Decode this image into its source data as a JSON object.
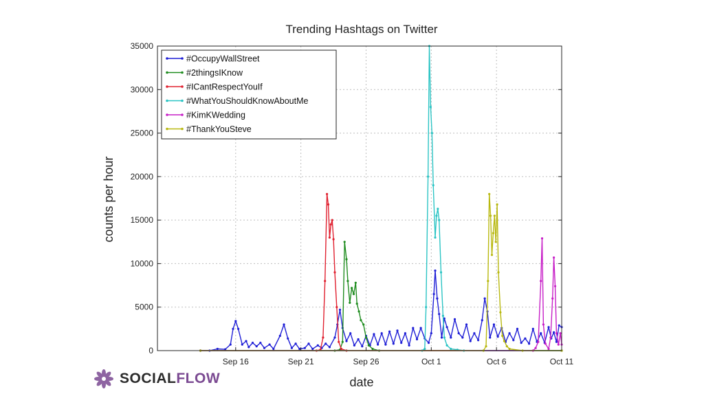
{
  "chart_data": {
    "type": "line",
    "title": "Trending Hashtags on Twitter",
    "xlabel": "date",
    "ylabel": "counts per hour",
    "xlim_days": [
      0,
      31
    ],
    "ylim": [
      0,
      35000
    ],
    "yticks": [
      0,
      5000,
      10000,
      15000,
      20000,
      25000,
      30000,
      35000
    ],
    "xticks": [
      {
        "day": 6,
        "label": "Sep 16"
      },
      {
        "day": 11,
        "label": "Sep 21"
      },
      {
        "day": 16,
        "label": "Sep 26"
      },
      {
        "day": 21,
        "label": "Oct 1"
      },
      {
        "day": 26,
        "label": "Oct 6"
      },
      {
        "day": 31,
        "label": "Oct 11"
      }
    ],
    "x_origin": "Sep 10",
    "grid": true,
    "legend": "top-left",
    "series": [
      {
        "name": "#OccupyWallStreet",
        "color": "#1f1fd6",
        "points": [
          [
            3.3,
            0
          ],
          [
            4.0,
            0
          ],
          [
            4.6,
            200
          ],
          [
            5.2,
            150
          ],
          [
            5.6,
            700
          ],
          [
            5.8,
            2500
          ],
          [
            6.0,
            3400
          ],
          [
            6.2,
            2500
          ],
          [
            6.5,
            700
          ],
          [
            6.8,
            1100
          ],
          [
            7.0,
            400
          ],
          [
            7.3,
            900
          ],
          [
            7.6,
            500
          ],
          [
            7.9,
            900
          ],
          [
            8.2,
            300
          ],
          [
            8.6,
            700
          ],
          [
            8.9,
            200
          ],
          [
            9.4,
            1700
          ],
          [
            9.7,
            3000
          ],
          [
            10.0,
            1400
          ],
          [
            10.3,
            300
          ],
          [
            10.6,
            800
          ],
          [
            10.9,
            200
          ],
          [
            11.3,
            300
          ],
          [
            11.6,
            800
          ],
          [
            11.9,
            200
          ],
          [
            12.3,
            600
          ],
          [
            12.6,
            300
          ],
          [
            12.9,
            800
          ],
          [
            13.2,
            400
          ],
          [
            13.6,
            1500
          ],
          [
            13.8,
            3000
          ],
          [
            14.0,
            4700
          ],
          [
            14.2,
            2600
          ],
          [
            14.5,
            1100
          ],
          [
            14.8,
            2000
          ],
          [
            15.1,
            600
          ],
          [
            15.4,
            1300
          ],
          [
            15.7,
            500
          ],
          [
            16.0,
            1700
          ],
          [
            16.3,
            600
          ],
          [
            16.6,
            1900
          ],
          [
            16.9,
            700
          ],
          [
            17.2,
            2000
          ],
          [
            17.5,
            700
          ],
          [
            17.8,
            2200
          ],
          [
            18.1,
            800
          ],
          [
            18.4,
            2300
          ],
          [
            18.7,
            900
          ],
          [
            19.0,
            2000
          ],
          [
            19.3,
            600
          ],
          [
            19.6,
            2600
          ],
          [
            19.9,
            1300
          ],
          [
            20.2,
            2600
          ],
          [
            20.5,
            1400
          ],
          [
            20.8,
            900
          ],
          [
            21.0,
            2000
          ],
          [
            21.2,
            6500
          ],
          [
            21.3,
            9200
          ],
          [
            21.45,
            6000
          ],
          [
            21.6,
            4200
          ],
          [
            21.8,
            1500
          ],
          [
            22.0,
            3700
          ],
          [
            22.2,
            2700
          ],
          [
            22.5,
            1500
          ],
          [
            22.8,
            3600
          ],
          [
            23.1,
            2000
          ],
          [
            23.4,
            1500
          ],
          [
            23.7,
            3000
          ],
          [
            24.0,
            1100
          ],
          [
            24.3,
            2000
          ],
          [
            24.6,
            1200
          ],
          [
            24.9,
            3500
          ],
          [
            25.1,
            6000
          ],
          [
            25.3,
            4500
          ],
          [
            25.5,
            1500
          ],
          [
            25.8,
            3000
          ],
          [
            26.1,
            1600
          ],
          [
            26.4,
            2600
          ],
          [
            26.7,
            1000
          ],
          [
            27.0,
            2000
          ],
          [
            27.3,
            1200
          ],
          [
            27.6,
            2500
          ],
          [
            27.9,
            900
          ],
          [
            28.2,
            1400
          ],
          [
            28.5,
            800
          ],
          [
            28.8,
            2500
          ],
          [
            29.1,
            1000
          ],
          [
            29.4,
            2000
          ],
          [
            29.7,
            900
          ],
          [
            30.0,
            2700
          ],
          [
            30.2,
            1400
          ],
          [
            30.4,
            2100
          ],
          [
            30.6,
            1000
          ],
          [
            30.8,
            2900
          ],
          [
            31.0,
            2700
          ]
        ]
      },
      {
        "name": "#2thingsIKnow",
        "color": "#1f8c1f",
        "points": [
          [
            3.3,
            0
          ],
          [
            13.6,
            0
          ],
          [
            14.0,
            100
          ],
          [
            14.2,
            1000
          ],
          [
            14.35,
            12500
          ],
          [
            14.5,
            10500
          ],
          [
            14.6,
            8000
          ],
          [
            14.75,
            5500
          ],
          [
            14.9,
            7200
          ],
          [
            15.05,
            6500
          ],
          [
            15.2,
            7800
          ],
          [
            15.3,
            5400
          ],
          [
            15.45,
            4500
          ],
          [
            15.6,
            3500
          ],
          [
            15.8,
            3000
          ],
          [
            16.0,
            1500
          ],
          [
            16.2,
            600
          ],
          [
            16.5,
            200
          ],
          [
            17.0,
            0
          ],
          [
            31.0,
            0
          ]
        ]
      },
      {
        "name": "#ICantRespectYouIf",
        "color": "#e0202f",
        "points": [
          [
            3.3,
            0
          ],
          [
            12.2,
            0
          ],
          [
            12.5,
            100
          ],
          [
            12.7,
            1500
          ],
          [
            12.85,
            8000
          ],
          [
            13.0,
            18000
          ],
          [
            13.1,
            16800
          ],
          [
            13.2,
            13000
          ],
          [
            13.3,
            14500
          ],
          [
            13.4,
            15000
          ],
          [
            13.5,
            12800
          ],
          [
            13.6,
            9000
          ],
          [
            13.75,
            5000
          ],
          [
            13.9,
            1000
          ],
          [
            14.1,
            200
          ],
          [
            14.5,
            0
          ],
          [
            31.0,
            0
          ]
        ]
      },
      {
        "name": "#WhatYouShouldKnowAboutMe",
        "color": "#2bc4c4",
        "points": [
          [
            3.3,
            0
          ],
          [
            20.3,
            0
          ],
          [
            20.5,
            200
          ],
          [
            20.6,
            5000
          ],
          [
            20.75,
            20000
          ],
          [
            20.85,
            35000
          ],
          [
            20.95,
            28000
          ],
          [
            21.05,
            25000
          ],
          [
            21.15,
            19000
          ],
          [
            21.3,
            13000
          ],
          [
            21.4,
            15500
          ],
          [
            21.5,
            16300
          ],
          [
            21.6,
            15000
          ],
          [
            21.75,
            9000
          ],
          [
            21.9,
            4000
          ],
          [
            22.0,
            1500
          ],
          [
            22.2,
            600
          ],
          [
            22.5,
            200
          ],
          [
            23.0,
            100
          ],
          [
            23.5,
            0
          ],
          [
            31.0,
            0
          ]
        ]
      },
      {
        "name": "#KimKWedding",
        "color": "#c71fc7",
        "points": [
          [
            3.3,
            0
          ],
          [
            28.8,
            0
          ],
          [
            29.0,
            300
          ],
          [
            29.2,
            1000
          ],
          [
            29.4,
            8000
          ],
          [
            29.5,
            12900
          ],
          [
            29.6,
            3000
          ],
          [
            29.75,
            800
          ],
          [
            30.0,
            200
          ],
          [
            30.15,
            1500
          ],
          [
            30.3,
            6000
          ],
          [
            30.4,
            10700
          ],
          [
            30.5,
            7400
          ],
          [
            30.6,
            2000
          ],
          [
            30.75,
            700
          ],
          [
            30.9,
            2000
          ],
          [
            31.0,
            700
          ]
        ]
      },
      {
        "name": "#ThankYouSteve",
        "color": "#b8b80f",
        "points": [
          [
            3.3,
            0
          ],
          [
            25.0,
            0
          ],
          [
            25.2,
            500
          ],
          [
            25.35,
            8000
          ],
          [
            25.45,
            18000
          ],
          [
            25.55,
            15500
          ],
          [
            25.65,
            11000
          ],
          [
            25.75,
            13500
          ],
          [
            25.85,
            15500
          ],
          [
            25.95,
            12500
          ],
          [
            26.05,
            16800
          ],
          [
            26.15,
            9000
          ],
          [
            26.3,
            4400
          ],
          [
            26.45,
            1700
          ],
          [
            26.6,
            1100
          ],
          [
            26.8,
            500
          ],
          [
            27.0,
            200
          ],
          [
            28.0,
            0
          ],
          [
            31.0,
            0
          ]
        ]
      }
    ]
  },
  "logo": {
    "word1": "SOCIAL",
    "word2": "FLOW"
  }
}
